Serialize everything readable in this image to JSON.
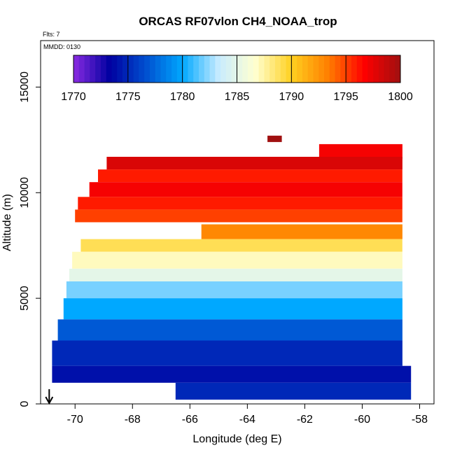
{
  "chart_data": {
    "type": "heatmap",
    "title": "ORCAS RF07vlon CH4_NOAA_trop",
    "flights_label": "Flts: 7",
    "date_label": "MMDD: 0130",
    "xlabel": "Longitude (deg E)",
    "ylabel": "Altitude (m)",
    "xlim": [
      -71.2,
      -57.5
    ],
    "ylim": [
      0,
      17200
    ],
    "x_ticks": [
      -70,
      -68,
      -66,
      -64,
      -62,
      -60,
      -58
    ],
    "x_tick_labels": [
      "-70",
      "-68",
      "-66",
      "-64",
      "-62",
      "-60",
      "-58"
    ],
    "y_ticks": [
      0,
      5000,
      10000,
      15000
    ],
    "y_tick_labels": [
      "0",
      "5000",
      "10000",
      "15000"
    ],
    "colorbar": {
      "min": 1770,
      "max": 1800,
      "ticks": [
        1770,
        1775,
        1780,
        1785,
        1790,
        1795,
        1800
      ],
      "tick_labels": [
        "1770",
        "1775",
        "1780",
        "1785",
        "1790",
        "1795",
        "1800"
      ],
      "colors": [
        "#8a2be2",
        "#0000a0",
        "#0050d0",
        "#00a8ff",
        "#c8ecff",
        "#ffffd0",
        "#ffd020",
        "#ff8000",
        "#ff0000",
        "#a01010"
      ]
    },
    "marker": {
      "longitude": -70.9,
      "label": "arrow-down"
    },
    "bands": [
      {
        "alt_from": 12400,
        "alt_to": 12700,
        "lon_from": -63.3,
        "lon_to": -62.8,
        "value": 1800,
        "label": "upper-isolated-cell"
      },
      {
        "alt_from": 11600,
        "alt_to": 12300,
        "lon_from": -61.5,
        "lon_to": -58.6,
        "value": 1797,
        "label": "upper-right-red"
      },
      {
        "alt_from": 11100,
        "alt_to": 11700,
        "lon_from": -68.9,
        "lon_to": -58.6,
        "value": 1798,
        "label": "upper-red-band-1"
      },
      {
        "alt_from": 10500,
        "alt_to": 11100,
        "lon_from": -69.2,
        "lon_to": -58.6,
        "value": 1796,
        "label": "upper-red-band-2"
      },
      {
        "alt_from": 9800,
        "alt_to": 10500,
        "lon_from": -69.5,
        "lon_to": -58.6,
        "value": 1797,
        "label": "upper-red-band-3"
      },
      {
        "alt_from": 9200,
        "alt_to": 9800,
        "lon_from": -69.9,
        "lon_to": -58.6,
        "value": 1796,
        "label": "upper-red-band-4"
      },
      {
        "alt_from": 8600,
        "alt_to": 9200,
        "lon_from": -70.0,
        "lon_to": -58.6,
        "value": 1795,
        "label": "upper-red-band-5"
      },
      {
        "alt_from": 7800,
        "alt_to": 8500,
        "lon_from": -65.6,
        "lon_to": -58.6,
        "value": 1793,
        "label": "mid-orange-band"
      },
      {
        "alt_from": 7200,
        "alt_to": 7800,
        "lon_from": -69.8,
        "lon_to": -58.6,
        "value": 1789,
        "label": "mid-yellow-band"
      },
      {
        "alt_from": 6400,
        "alt_to": 7200,
        "lon_from": -70.1,
        "lon_to": -58.6,
        "value": 1787,
        "label": "transition-band"
      },
      {
        "alt_from": 5800,
        "alt_to": 6400,
        "lon_from": -70.2,
        "lon_to": -58.6,
        "value": 1785,
        "label": "pale-band"
      },
      {
        "alt_from": 5000,
        "alt_to": 5800,
        "lon_from": -70.3,
        "lon_to": -58.6,
        "value": 1782,
        "label": "light-blue-band"
      },
      {
        "alt_from": 4000,
        "alt_to": 5000,
        "lon_from": -70.4,
        "lon_to": -58.6,
        "value": 1780,
        "label": "cyan-band"
      },
      {
        "alt_from": 3000,
        "alt_to": 4000,
        "lon_from": -70.6,
        "lon_to": -58.6,
        "value": 1777,
        "label": "blue-band"
      },
      {
        "alt_from": 1800,
        "alt_to": 3000,
        "lon_from": -70.8,
        "lon_to": -58.6,
        "value": 1775,
        "label": "dark-blue-band"
      },
      {
        "alt_from": 1000,
        "alt_to": 1800,
        "lon_from": -70.8,
        "lon_to": -58.3,
        "value": 1774,
        "label": "low-dark-band"
      },
      {
        "alt_from": 200,
        "alt_to": 1000,
        "lon_from": -66.5,
        "lon_to": -58.3,
        "value": 1775,
        "label": "surface-band"
      }
    ]
  }
}
